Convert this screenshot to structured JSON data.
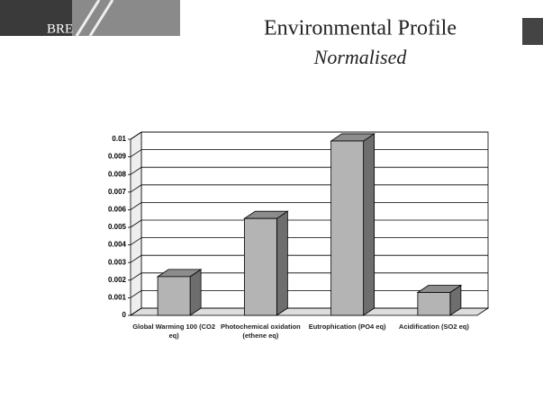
{
  "header": {
    "logo": "BRE"
  },
  "chart_data": {
    "type": "bar",
    "title": "Environmental Profile",
    "subtitle": "Normalised",
    "categories": [
      "Global Warming 100 (CO2 eq)",
      "Photochemical oxidation (ethene eq)",
      "Eutrophication (PO4 eq)",
      "Acidification (SO2 eq)"
    ],
    "values": [
      0.0022,
      0.0055,
      0.0099,
      0.0013
    ],
    "color": "#b4b4b4",
    "ylim": [
      0,
      0.01
    ],
    "yticks": [
      0,
      0.001,
      0.002,
      0.003,
      0.004,
      0.005,
      0.006,
      0.007,
      0.008,
      0.009,
      0.01
    ],
    "grid": true
  }
}
